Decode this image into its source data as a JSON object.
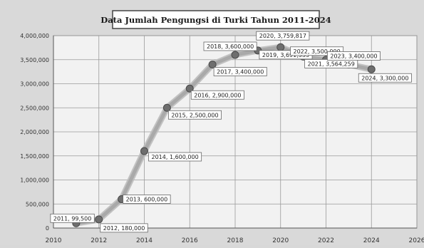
{
  "chart_data": {
    "type": "line",
    "title": "Data Jumlah Pengungsi di Turki Tahun 2011-2024",
    "xlabel": "",
    "ylabel": "",
    "xlim": [
      2010,
      2026
    ],
    "ylim": [
      0,
      4000000
    ],
    "x_ticks": [
      "2010",
      "2012",
      "2014",
      "2016",
      "2018",
      "2020",
      "2022",
      "2024",
      "2026"
    ],
    "y_ticks": [
      "0",
      "500,000",
      "1,000,000",
      "1,500,000",
      "2,000,000",
      "2,500,000",
      "3,000,000",
      "3,500,000",
      "4,000,000"
    ],
    "grid": true,
    "legend": "none",
    "line_color": "#a9a9a9",
    "marker_color": "#6e6e6e",
    "points": [
      {
        "x": 2011,
        "y": 99500,
        "label": "2011, 99,500"
      },
      {
        "x": 2012,
        "y": 180000,
        "label": "2012, 180,000"
      },
      {
        "x": 2013,
        "y": 600000,
        "label": "2013, 600,000"
      },
      {
        "x": 2014,
        "y": 1600000,
        "label": "2014, 1,600,000"
      },
      {
        "x": 2015,
        "y": 2500000,
        "label": "2015, 2,500,000"
      },
      {
        "x": 2016,
        "y": 2900000,
        "label": "2016, 2,900,000"
      },
      {
        "x": 2017,
        "y": 3400000,
        "label": "2017, 3,400,000"
      },
      {
        "x": 2018,
        "y": 3600000,
        "label": "2018, 3,600,000"
      },
      {
        "x": 2019,
        "y": 3691333,
        "label": "2019, 3,691,333"
      },
      {
        "x": 2020,
        "y": 3759817,
        "label": "2020, 3,759,817"
      },
      {
        "x": 2021,
        "y": 3564259,
        "label": "2021, 3,564,259"
      },
      {
        "x": 2022,
        "y": 3500000,
        "label": "2022, 3,500,000"
      },
      {
        "x": 2023,
        "y": 3400000,
        "label": "2023, 3,400,000"
      },
      {
        "x": 2024,
        "y": 3300000,
        "label": "2024, 3,300,000"
      }
    ]
  }
}
